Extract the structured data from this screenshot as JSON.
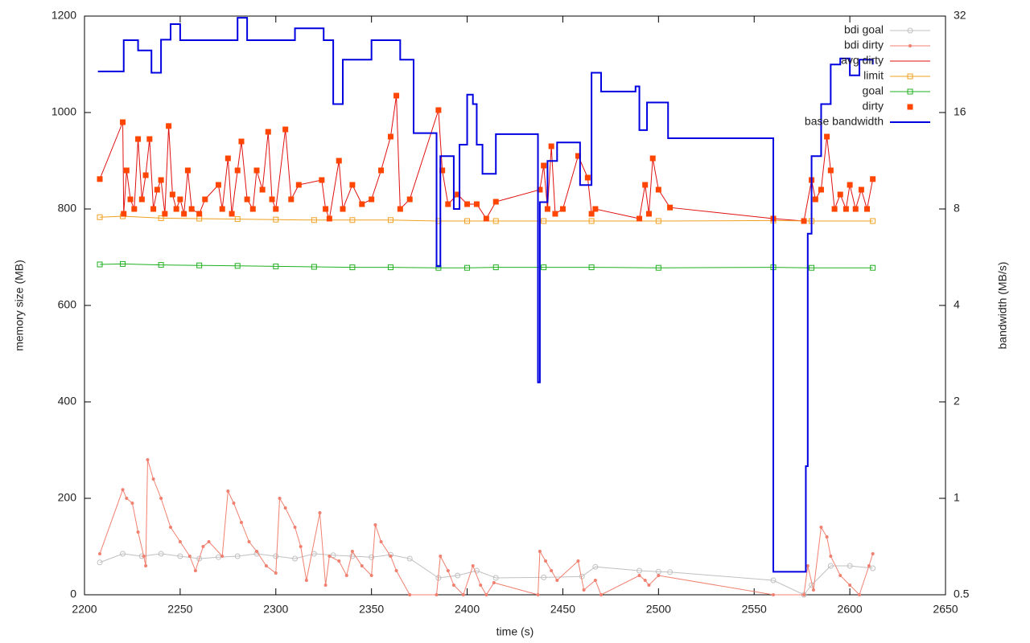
{
  "chart_data": {
    "type": "line",
    "xlabel": "time (s)",
    "ylabel": "memory size (MB)",
    "y2label": "bandwidth (MB/s)",
    "xlim": [
      2200,
      2650
    ],
    "xticks": [
      2200,
      2250,
      2300,
      2350,
      2400,
      2450,
      2500,
      2550,
      2600,
      2650
    ],
    "ylim": [
      0,
      1200
    ],
    "yticks": [
      0,
      200,
      400,
      600,
      800,
      1000,
      1200
    ],
    "y2lim": [
      0.5,
      32
    ],
    "y2ticks": [
      0.5,
      1,
      2,
      4,
      8,
      16,
      32
    ],
    "y2log": true,
    "legend": "top-right",
    "series": [
      {
        "name": "bdi goal",
        "color": "#c0c0c0",
        "marker": "circle",
        "line": true,
        "x": [
          2208,
          2220,
          2230,
          2240,
          2250,
          2260,
          2270,
          2280,
          2290,
          2300,
          2310,
          2320,
          2330,
          2340,
          2350,
          2360,
          2370,
          2385,
          2395,
          2405,
          2415,
          2440,
          2460,
          2467,
          2490,
          2500,
          2506,
          2560,
          2576,
          2580,
          2590,
          2600,
          2612
        ],
        "values": [
          67,
          85,
          80,
          85,
          80,
          75,
          78,
          80,
          85,
          80,
          75,
          85,
          82,
          80,
          78,
          83,
          75,
          35,
          40,
          50,
          35,
          36,
          38,
          58,
          50,
          48,
          47,
          30,
          0,
          20,
          60,
          60,
          55
        ]
      },
      {
        "name": "bdi dirty",
        "color": "#f08070",
        "marker": "dot",
        "line": true,
        "x": [
          2208,
          2220,
          2222,
          2225,
          2228,
          2231,
          2232,
          2233,
          2236,
          2240,
          2245,
          2250,
          2255,
          2258,
          2262,
          2265,
          2272,
          2275,
          2278,
          2282,
          2286,
          2290,
          2295,
          2300,
          2302,
          2305,
          2310,
          2313,
          2316,
          2323,
          2326,
          2328,
          2333,
          2337,
          2340,
          2345,
          2350,
          2352,
          2355,
          2360,
          2363,
          2370,
          2384,
          2386,
          2390,
          2393,
          2398,
          2403,
          2407,
          2410,
          2414,
          2437,
          2438,
          2441,
          2444,
          2447,
          2458,
          2461,
          2467,
          2470,
          2490,
          2493,
          2495,
          2500,
          2560,
          2576,
          2578,
          2581,
          2585,
          2588,
          2590,
          2595,
          2600,
          2605,
          2610,
          2612
        ],
        "values": [
          85,
          218,
          200,
          190,
          130,
          80,
          60,
          280,
          240,
          200,
          140,
          110,
          80,
          50,
          100,
          110,
          80,
          215,
          190,
          150,
          110,
          90,
          60,
          45,
          200,
          180,
          140,
          100,
          30,
          170,
          20,
          80,
          70,
          40,
          90,
          60,
          40,
          145,
          110,
          80,
          50,
          0,
          0,
          80,
          50,
          20,
          0,
          60,
          20,
          0,
          25,
          0,
          90,
          70,
          50,
          30,
          70,
          10,
          30,
          0,
          40,
          30,
          20,
          40,
          0,
          0,
          60,
          10,
          140,
          120,
          80,
          40,
          20,
          0,
          60,
          85
        ]
      },
      {
        "name": "avg dirty",
        "color": "#e01010",
        "marker": "none",
        "line": true,
        "x": [
          2208,
          2220,
          2220.5,
          2222,
          2224,
          2226,
          2228,
          2230,
          2232,
          2234,
          2236,
          2238,
          2240,
          2242,
          2244,
          2246,
          2248,
          2250,
          2252,
          2254,
          2256,
          2260,
          2263,
          2270,
          2272,
          2275,
          2277,
          2280,
          2282,
          2285,
          2288,
          2290,
          2293,
          2296,
          2298,
          2300,
          2305,
          2308,
          2312,
          2324,
          2326,
          2328,
          2333,
          2335,
          2340,
          2345,
          2350,
          2355,
          2360,
          2363,
          2365,
          2370,
          2385,
          2387,
          2390,
          2395,
          2400,
          2405,
          2410,
          2415,
          2438,
          2440,
          2442,
          2444,
          2446,
          2450,
          2458,
          2463,
          2465,
          2467,
          2490,
          2493,
          2495,
          2497,
          2500,
          2506,
          2560,
          2576,
          2580,
          2582,
          2585,
          2588,
          2590,
          2592,
          2595,
          2598,
          2600,
          2603,
          2606,
          2609,
          2612
        ],
        "values": [
          862,
          980,
          790,
          880,
          820,
          800,
          945,
          820,
          870,
          945,
          800,
          840,
          860,
          790,
          972,
          830,
          800,
          820,
          790,
          880,
          800,
          790,
          820,
          850,
          800,
          905,
          790,
          880,
          940,
          820,
          800,
          880,
          840,
          960,
          820,
          800,
          965,
          820,
          850,
          860,
          800,
          780,
          900,
          800,
          850,
          810,
          820,
          880,
          950,
          1035,
          800,
          820,
          1005,
          880,
          810,
          830,
          810,
          810,
          780,
          815,
          840,
          890,
          800,
          930,
          790,
          800,
          910,
          865,
          790,
          800,
          780,
          850,
          790,
          905,
          840,
          803,
          780,
          775,
          860,
          820,
          840,
          950,
          880,
          800,
          830,
          800,
          850,
          800,
          840,
          800,
          862
        ]
      },
      {
        "name": "limit",
        "color": "#f0a020",
        "marker": "square-open",
        "line": true,
        "x": [
          2208,
          2220,
          2240,
          2260,
          2280,
          2300,
          2320,
          2340,
          2360,
          2385,
          2400,
          2415,
          2440,
          2465,
          2500,
          2560,
          2580,
          2612
        ],
        "values": [
          783,
          785,
          781,
          780,
          779,
          778,
          777,
          777,
          777,
          775,
          775,
          775,
          775,
          775,
          775,
          776,
          775,
          775
        ]
      },
      {
        "name": "goal",
        "color": "#20b020",
        "marker": "square-open",
        "line": true,
        "x": [
          2208,
          2220,
          2240,
          2260,
          2280,
          2300,
          2320,
          2340,
          2360,
          2385,
          2400,
          2415,
          2440,
          2465,
          2500,
          2560,
          2580,
          2612
        ],
        "values": [
          685,
          686,
          684,
          683,
          682,
          681,
          680,
          679,
          679,
          678,
          678,
          679,
          679,
          679,
          678,
          679,
          678,
          678
        ]
      },
      {
        "name": "dirty",
        "color": "#ff4500",
        "marker": "square",
        "line": false,
        "x": [
          2208,
          2220,
          2220.5,
          2222,
          2224,
          2226,
          2228,
          2230,
          2232,
          2234,
          2236,
          2238,
          2240,
          2242,
          2244,
          2246,
          2248,
          2250,
          2252,
          2254,
          2256,
          2260,
          2263,
          2270,
          2272,
          2275,
          2277,
          2280,
          2282,
          2285,
          2288,
          2290,
          2293,
          2296,
          2298,
          2300,
          2305,
          2308,
          2312,
          2324,
          2326,
          2328,
          2333,
          2335,
          2340,
          2345,
          2350,
          2355,
          2360,
          2363,
          2365,
          2370,
          2385,
          2387,
          2390,
          2395,
          2400,
          2405,
          2410,
          2415,
          2438,
          2440,
          2442,
          2444,
          2446,
          2450,
          2458,
          2463,
          2465,
          2467,
          2490,
          2493,
          2495,
          2497,
          2500,
          2506,
          2560,
          2576,
          2580,
          2582,
          2585,
          2588,
          2590,
          2592,
          2595,
          2598,
          2600,
          2603,
          2606,
          2609,
          2612
        ],
        "values": [
          862,
          980,
          790,
          880,
          820,
          800,
          945,
          820,
          870,
          945,
          800,
          840,
          860,
          790,
          972,
          830,
          800,
          820,
          790,
          880,
          800,
          790,
          820,
          850,
          800,
          905,
          790,
          880,
          940,
          820,
          800,
          880,
          840,
          960,
          820,
          800,
          965,
          820,
          850,
          860,
          800,
          780,
          900,
          800,
          850,
          810,
          820,
          880,
          950,
          1035,
          800,
          820,
          1005,
          880,
          810,
          830,
          810,
          810,
          780,
          815,
          840,
          890,
          800,
          930,
          790,
          800,
          910,
          865,
          790,
          800,
          780,
          850,
          790,
          905,
          840,
          803,
          780,
          775,
          860,
          820,
          840,
          950,
          880,
          800,
          830,
          800,
          850,
          800,
          840,
          800,
          862
        ]
      },
      {
        "name": "base bandwidth",
        "color": "#0000e0",
        "marker": "none",
        "line": true,
        "step": true,
        "axis": "y2",
        "x": [
          2207,
          2220,
          2220.5,
          2228,
          2235,
          2240,
          2245,
          2250,
          2275,
          2280,
          2285,
          2310,
          2320,
          2325,
          2330,
          2335,
          2350,
          2365,
          2372,
          2384,
          2386,
          2393,
          2396,
          2400,
          2403,
          2405,
          2408,
          2415,
          2437,
          2438,
          2442,
          2447,
          2459,
          2465,
          2470,
          2487,
          2488,
          2490,
          2494,
          2505,
          2560,
          2576,
          2577,
          2578,
          2580,
          2585,
          2590,
          2595,
          2600,
          2605,
          2612
        ],
        "values": [
          21.5,
          21.5,
          26.9,
          25,
          21.3,
          27,
          30.2,
          26.9,
          26.9,
          31.6,
          26.9,
          29.3,
          29.3,
          26.9,
          17,
          23.4,
          26.9,
          23.4,
          13.8,
          5.3,
          11.7,
          8,
          12.7,
          18.2,
          17,
          12.7,
          10.3,
          13.7,
          2.3,
          8.4,
          11.3,
          12.9,
          9.5,
          21.3,
          18.6,
          18.6,
          19.3,
          14.1,
          17.2,
          13.3,
          0.59,
          0.59,
          1.26,
          6.7,
          11.7,
          17,
          22.6,
          23.6,
          20.9,
          23.4,
          22.6
        ]
      }
    ]
  }
}
